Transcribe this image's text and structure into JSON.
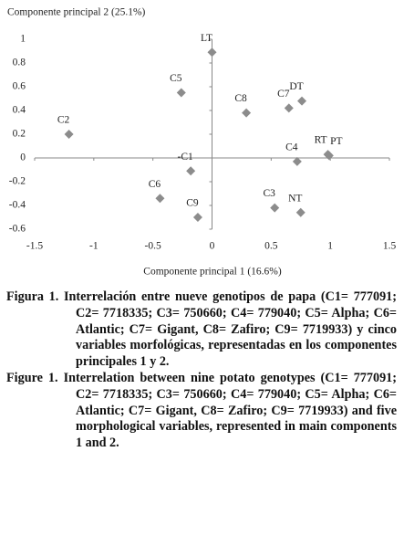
{
  "chart_data": {
    "type": "scatter",
    "title": "Componente principal 2 (25.1%)",
    "x_label": "Componente principal 1 (16.6%)",
    "labels": [
      "LT",
      "C5",
      "C8",
      "C7",
      "DT",
      "C2",
      "RT",
      "PT",
      "C4",
      "-C1",
      "C6",
      "C9",
      "C3",
      "NT"
    ],
    "x": [
      0,
      -0.26,
      0.29,
      0.65,
      0.76,
      -1.21,
      0.98,
      0.99,
      0.72,
      -0.18,
      -0.44,
      -0.12,
      0.53,
      0.75
    ],
    "values": [
      0.89,
      0.55,
      0.38,
      0.42,
      0.48,
      0.2,
      0.03,
      0.02,
      -0.03,
      -0.11,
      -0.34,
      -0.5,
      -0.42,
      -0.46
    ],
    "color": "#8c8c8c",
    "xlim": [
      -1.5,
      1.5
    ],
    "xticks": [
      -1.5,
      -1,
      -0.5,
      0,
      0.5,
      1,
      1.5
    ],
    "ylim": [
      -0.6,
      1
    ],
    "yticks": [
      -0.6,
      -0.4,
      -0.2,
      0,
      0.2,
      0.4,
      0.6,
      0.8,
      1
    ]
  },
  "caption": {
    "es": {
      "label": "Figura 1.",
      "text": "Interrelación entre nueve genotipos de papa (C1= 777091; C2= 7718335; C3= 750660; C4= 779040; C5= Alpha; C6= Atlantic; C7= Gigant, C8= Zafiro; C9= 7719933) y cinco variables morfológicas, representadas en los componentes principales 1 y 2."
    },
    "en": {
      "label": "Figure 1.",
      "text": "Interrelation between nine potato genotypes (C1= 777091; C2= 7718335; C3= 750660; C4= 779040; C5= Alpha; C6= Atlantic; C7= Gigant, C8= Zafiro; C9= 7719933) and five morphological variables, represented in main components 1 and 2."
    }
  }
}
